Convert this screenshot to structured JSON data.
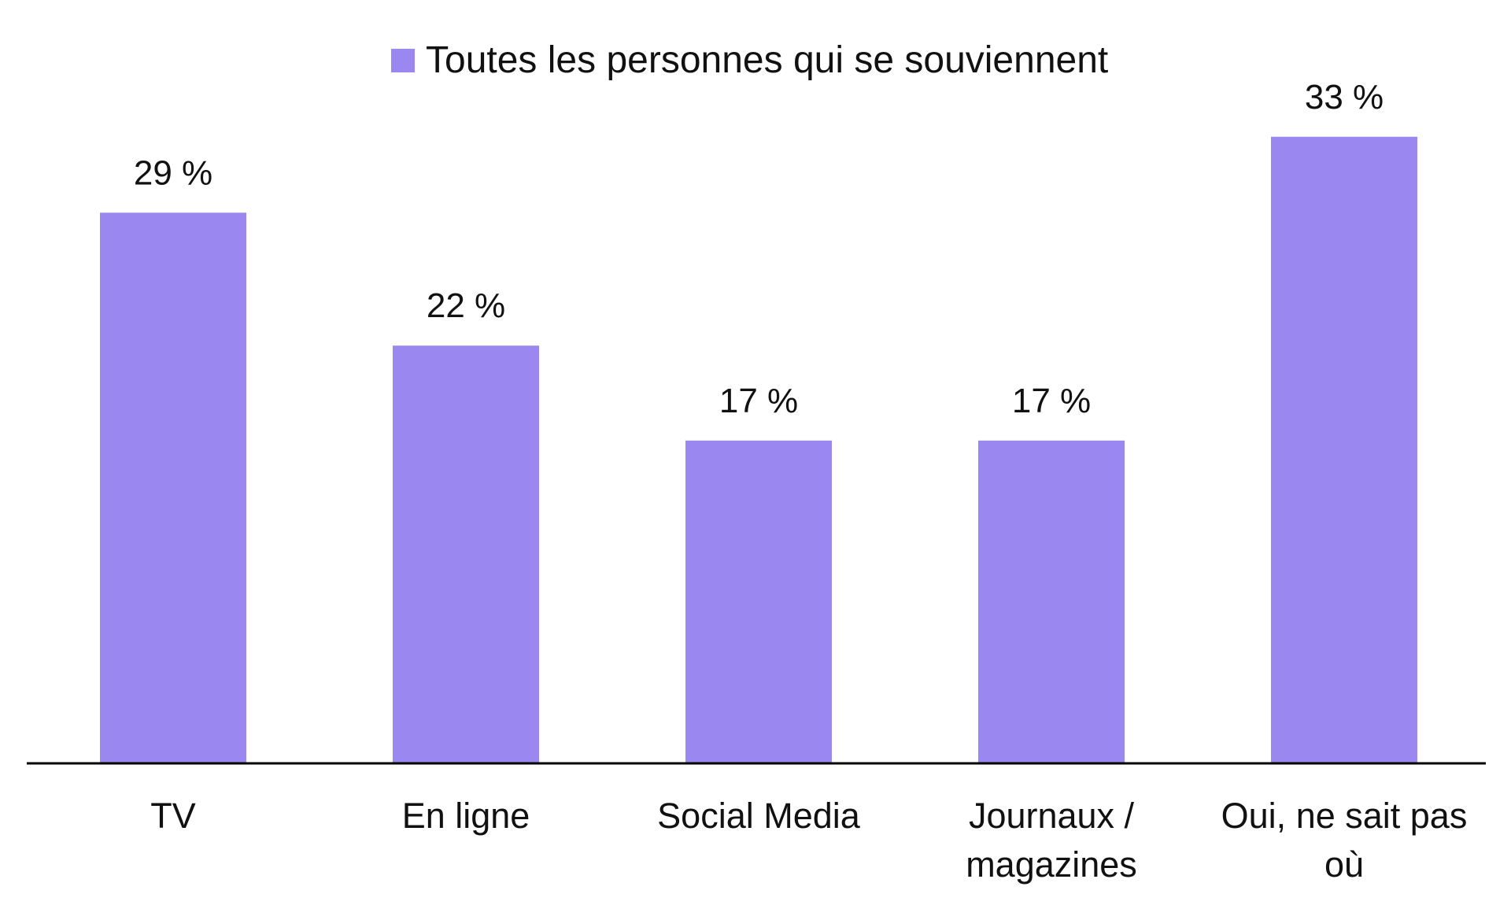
{
  "chart_data": {
    "type": "bar",
    "categories": [
      [
        "TV"
      ],
      [
        "En ligne"
      ],
      [
        "Social Media"
      ],
      [
        "Journaux /",
        "magazines"
      ],
      [
        "Oui, ne sait pas",
        "où"
      ]
    ],
    "series": [
      {
        "name": "Toutes les personnes qui se souviennent",
        "values": [
          29,
          22,
          17,
          17,
          33
        ],
        "labels": [
          "29 %",
          "22 %",
          "17 %",
          "17 %",
          "33 %"
        ],
        "color": "#9b87f0"
      }
    ],
    "ylim": [
      0,
      34.4
    ],
    "legend_position": "top-center",
    "grid": false
  }
}
